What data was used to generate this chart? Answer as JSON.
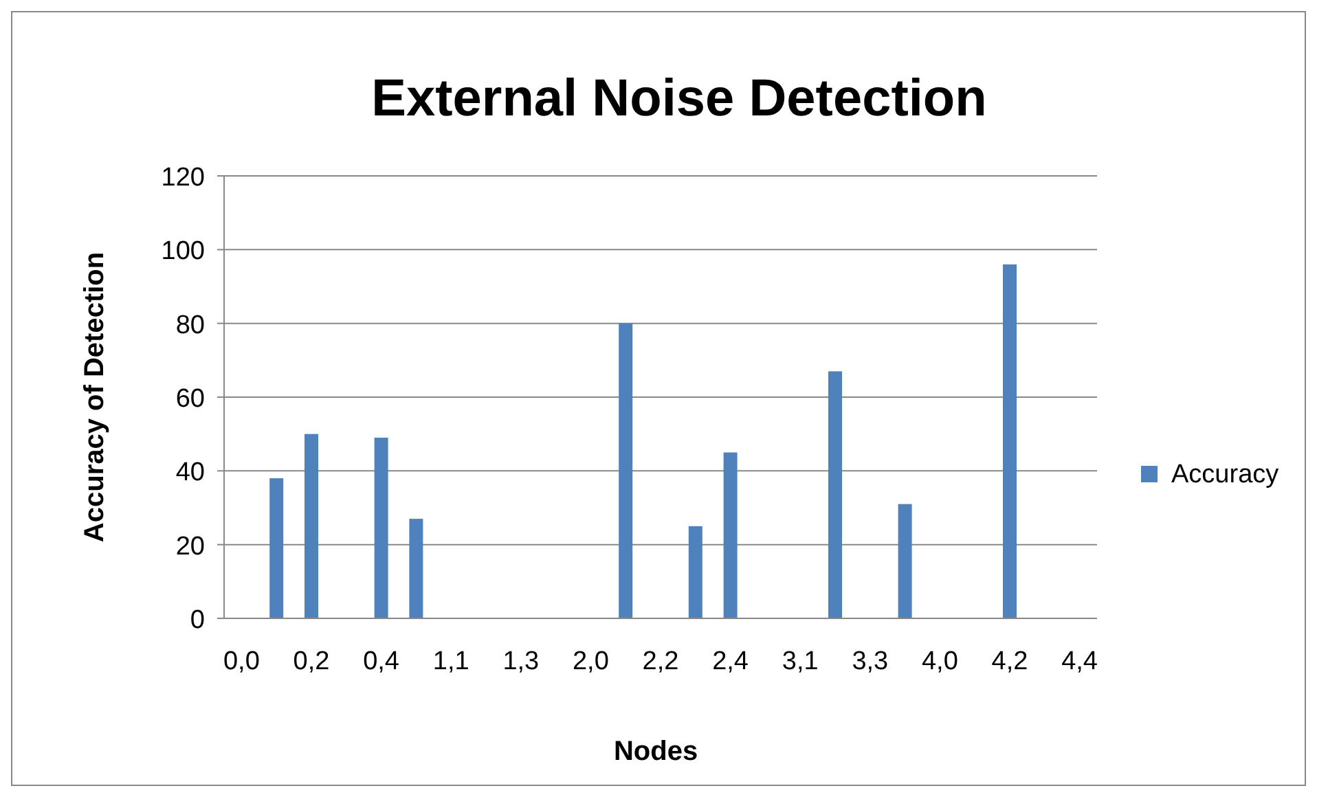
{
  "chart_data": {
    "type": "bar",
    "title": "External Noise Detection",
    "xlabel": "Nodes",
    "ylabel": "Accuracy of Detection",
    "categories": [
      "0,0",
      null,
      "0,2",
      null,
      "0,4",
      null,
      "1,1",
      null,
      "1,3",
      null,
      "2,0",
      null,
      "2,2",
      null,
      "2,4",
      null,
      "3,1",
      null,
      "3,3",
      null,
      "4,0",
      null,
      "4,2",
      null,
      "4,4"
    ],
    "series": [
      {
        "name": "Accuracy",
        "color": "#4f81bd",
        "values": [
          null,
          38,
          50,
          null,
          49,
          27,
          null,
          null,
          null,
          null,
          null,
          80,
          null,
          25,
          45,
          null,
          null,
          67,
          null,
          31,
          null,
          null,
          96,
          null,
          null
        ]
      }
    ],
    "ylim": [
      0,
      120
    ],
    "yticks": [
      0,
      20,
      40,
      60,
      80,
      100,
      120
    ],
    "grid": "y",
    "legend": "right"
  }
}
